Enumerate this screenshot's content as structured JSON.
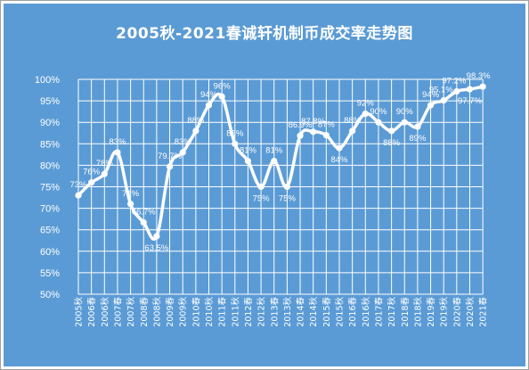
{
  "chart_data": {
    "type": "line",
    "title": "2005秋-2021春诚轩机制币成交率走势图",
    "xlabel": "",
    "ylabel": "",
    "ylim": [
      50,
      100
    ],
    "yticks": [
      "50%",
      "55%",
      "60%",
      "65%",
      "70%",
      "75%",
      "80%",
      "85%",
      "90%",
      "95%",
      "100%"
    ],
    "grid": true,
    "legend": "none",
    "colors": {
      "background": "#5b9bd5",
      "line": "#ffffff",
      "text": "#ffffff"
    },
    "categories": [
      "2005秋",
      "2006春",
      "2006秋",
      "2007春",
      "2007秋",
      "2008春",
      "2008秋",
      "2009春",
      "2009秋",
      "2010春",
      "2010秋",
      "2011春",
      "2011秋",
      "2012春",
      "2012秋",
      "2013春",
      "2013秋",
      "2014春",
      "2014秋",
      "2015春",
      "2015秋",
      "2016春",
      "2016秋",
      "2017春",
      "2017秋",
      "2018春",
      "2018秋",
      "2019春",
      "2019秋",
      "2020春",
      "2020秋",
      "2021春"
    ],
    "values": [
      73,
      76,
      78,
      83,
      71,
      66.7,
      63.5,
      79.7,
      83,
      88,
      94,
      96,
      85,
      81,
      75,
      81,
      75,
      86.9,
      87.8,
      87,
      84,
      88,
      92,
      90,
      88,
      90,
      89,
      94,
      95.1,
      97.2,
      97.7,
      98.3
    ],
    "labels": [
      "73%",
      "76%",
      "78%",
      "83%",
      "71%",
      "66.7%",
      "63.5%",
      "79.7%",
      "83%",
      "88%",
      "94%",
      "96%",
      "85%",
      "81%",
      "75%",
      "81%",
      "75%",
      "86.9%",
      "87.8%",
      "87%",
      "84%",
      "88%",
      "92%",
      "90%",
      "88%",
      "90%",
      "89%",
      "94%",
      "95.1%",
      "97.2%",
      "97.7%",
      "98.3%"
    ]
  }
}
